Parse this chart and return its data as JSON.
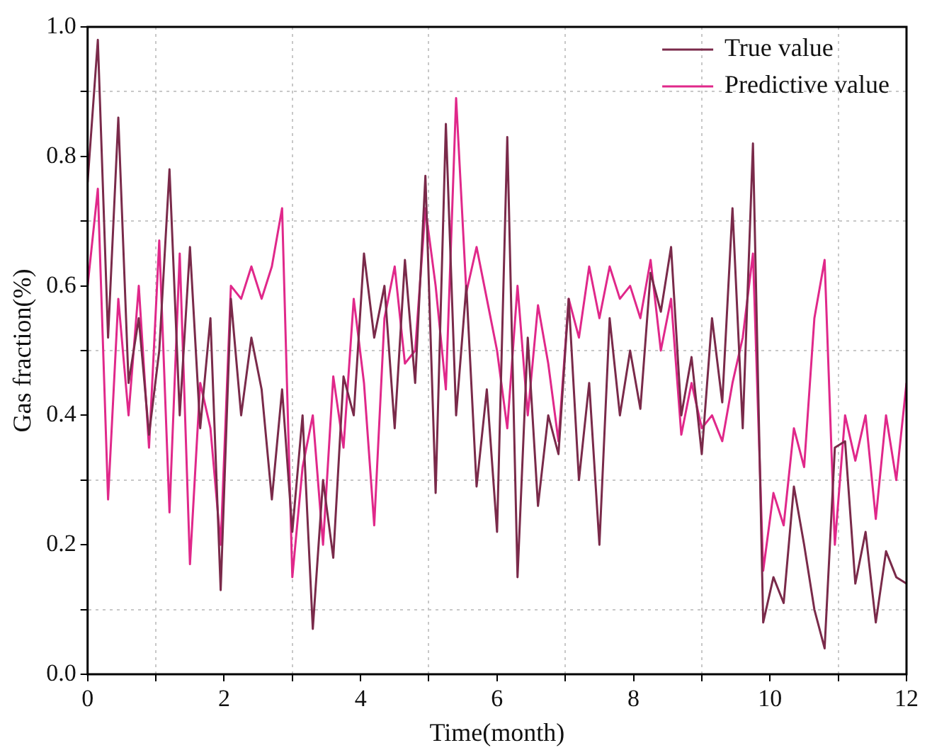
{
  "chart_data": {
    "type": "line",
    "xlabel": "Time(month)",
    "ylabel": "Gas fraction(%)",
    "x": [
      0,
      0.15,
      0.3,
      0.45,
      0.6,
      0.75,
      0.9,
      1.05,
      1.2,
      1.35,
      1.5,
      1.65,
      1.8,
      1.95,
      2.1,
      2.25,
      2.4,
      2.55,
      2.7,
      2.85,
      3,
      3.15,
      3.3,
      3.45,
      3.6,
      3.75,
      3.9,
      4.05,
      4.2,
      4.35,
      4.5,
      4.65,
      4.8,
      4.95,
      5.1,
      5.25,
      5.4,
      5.55,
      5.7,
      5.85,
      6,
      6.15,
      6.3,
      6.45,
      6.6,
      6.75,
      6.9,
      7.05,
      7.2,
      7.35,
      7.5,
      7.65,
      7.8,
      7.95,
      8.1,
      8.25,
      8.4,
      8.55,
      8.7,
      8.85,
      9,
      9.15,
      9.3,
      9.45,
      9.6,
      9.75,
      9.9,
      10.05,
      10.2,
      10.35,
      10.5,
      10.65,
      10.8,
      10.95,
      11.1,
      11.25,
      11.4,
      11.55,
      11.7,
      11.85,
      12
    ],
    "series": [
      {
        "name": "True value",
        "color": "#7a2a4a",
        "values": [
          0.76,
          0.98,
          0.52,
          0.86,
          0.45,
          0.55,
          0.37,
          0.5,
          0.78,
          0.4,
          0.66,
          0.38,
          0.55,
          0.13,
          0.58,
          0.4,
          0.52,
          0.44,
          0.27,
          0.44,
          0.22,
          0.4,
          0.07,
          0.3,
          0.18,
          0.46,
          0.4,
          0.65,
          0.52,
          0.6,
          0.38,
          0.64,
          0.45,
          0.77,
          0.28,
          0.85,
          0.4,
          0.6,
          0.29,
          0.44,
          0.22,
          0.83,
          0.15,
          0.52,
          0.26,
          0.4,
          0.34,
          0.58,
          0.3,
          0.45,
          0.2,
          0.55,
          0.4,
          0.5,
          0.41,
          0.62,
          0.56,
          0.66,
          0.4,
          0.49,
          0.34,
          0.55,
          0.42,
          0.72,
          0.38,
          0.82,
          0.08,
          0.15,
          0.11,
          0.29,
          0.2,
          0.1,
          0.04,
          0.35,
          0.36,
          0.14,
          0.22,
          0.08,
          0.19,
          0.15,
          0.14
        ]
      },
      {
        "name": "Predictive value",
        "color": "#e0288a",
        "values": [
          0.6,
          0.75,
          0.27,
          0.58,
          0.4,
          0.6,
          0.35,
          0.67,
          0.25,
          0.65,
          0.17,
          0.45,
          0.38,
          0.2,
          0.6,
          0.58,
          0.63,
          0.58,
          0.63,
          0.72,
          0.15,
          0.32,
          0.4,
          0.2,
          0.46,
          0.35,
          0.58,
          0.45,
          0.23,
          0.55,
          0.63,
          0.48,
          0.5,
          0.72,
          0.6,
          0.44,
          0.89,
          0.59,
          0.66,
          0.58,
          0.5,
          0.38,
          0.6,
          0.4,
          0.57,
          0.48,
          0.36,
          0.58,
          0.52,
          0.63,
          0.55,
          0.63,
          0.58,
          0.6,
          0.55,
          0.64,
          0.5,
          0.58,
          0.37,
          0.45,
          0.38,
          0.4,
          0.36,
          0.45,
          0.52,
          0.65,
          0.16,
          0.28,
          0.23,
          0.38,
          0.32,
          0.55,
          0.64,
          0.2,
          0.4,
          0.33,
          0.4,
          0.24,
          0.4,
          0.3,
          0.45
        ]
      }
    ],
    "xlim": [
      0,
      12
    ],
    "xticks": [
      0,
      {
        "value": 1,
        "label": null
      },
      2,
      {
        "value": 3,
        "label": null
      },
      4,
      {
        "value": 5,
        "label": null
      },
      6,
      {
        "value": 7,
        "label": null
      },
      8,
      {
        "value": 9,
        "label": null
      },
      10,
      {
        "value": 11,
        "label": null
      },
      12
    ],
    "ylim": [
      0,
      1
    ],
    "yticks": [
      "0.0",
      {
        "value": 0.1,
        "label": null
      },
      {
        "value": 0.2,
        "label": "0.2"
      },
      {
        "value": 0.3,
        "label": null
      },
      {
        "value": 0.4,
        "label": "0.4"
      },
      {
        "value": 0.5,
        "label": null
      },
      {
        "value": 0.6,
        "label": "0.6"
      },
      {
        "value": 0.7,
        "label": null
      },
      {
        "value": 0.8,
        "label": "0.8"
      },
      {
        "value": 0.9,
        "label": null
      },
      {
        "value": 1,
        "label": "1.0"
      }
    ],
    "grid": true,
    "legend": "top right",
    "marker": "none",
    "line_style": "solid"
  }
}
